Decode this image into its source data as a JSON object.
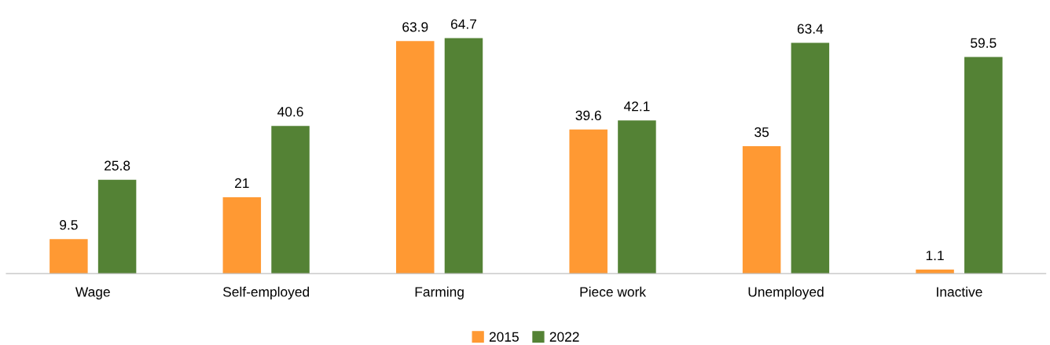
{
  "chart_data": {
    "type": "bar",
    "categories": [
      "Wage",
      "Self-employed",
      "Farming",
      "Piece work",
      "Unemployed",
      "Inactive"
    ],
    "series": [
      {
        "name": "2015",
        "color": "#ff9933",
        "values": [
          9.5,
          21,
          63.9,
          39.6,
          35,
          1.1
        ]
      },
      {
        "name": "2022",
        "color": "#548235",
        "values": [
          25.8,
          40.6,
          64.7,
          42.1,
          63.4,
          59.5
        ]
      }
    ],
    "data_labels": true,
    "legend": "bottom",
    "grid": false,
    "tick_labels": "x"
  }
}
